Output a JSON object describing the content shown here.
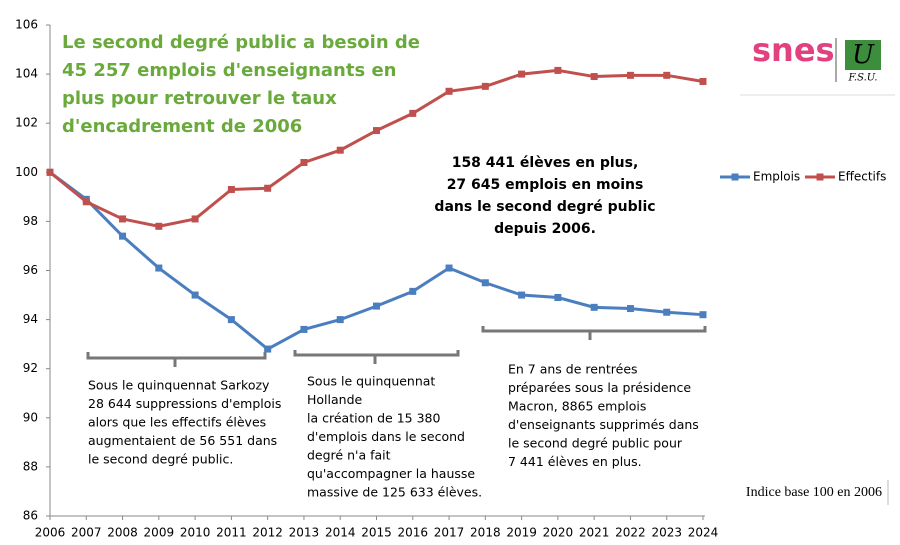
{
  "chart_data": {
    "type": "line",
    "title_lines": [
      "Le second degré public a besoin de",
      "45 257 emplois d'enseignants en",
      "plus pour retrouver le taux",
      "d'encadrement de 2006"
    ],
    "categories": [
      "2006",
      "2007",
      "2008",
      "2009",
      "2010",
      "2011",
      "2012",
      "2013",
      "2014",
      "2015",
      "2016",
      "2017",
      "2018",
      "2019",
      "2020",
      "2021",
      "2022",
      "2023",
      "2024"
    ],
    "series": [
      {
        "name": "Emplois",
        "color": "#4a7ebf",
        "values": [
          100,
          98.9,
          97.4,
          96.1,
          95.0,
          94.0,
          92.8,
          93.6,
          94.0,
          94.55,
          95.15,
          96.1,
          95.5,
          95.0,
          94.9,
          94.5,
          94.45,
          94.3,
          94.2
        ]
      },
      {
        "name": "Effectifs",
        "color": "#c0504d",
        "values": [
          100,
          98.8,
          98.1,
          97.8,
          98.1,
          99.3,
          99.35,
          100.4,
          100.9,
          101.7,
          102.4,
          103.3,
          103.5,
          104.0,
          104.15,
          103.9,
          103.95,
          103.95,
          103.7
        ]
      }
    ],
    "ylim": [
      86,
      106
    ],
    "yticks": [
      86,
      88,
      90,
      92,
      94,
      96,
      98,
      100,
      102,
      104,
      106
    ],
    "legend": "right",
    "highlight_lines": [
      "158 441 élèves en plus,",
      "27 645 emplois en moins",
      "dans le second degré public",
      "depuis 2006."
    ],
    "annotations": [
      [
        "Sous le quinquennat Sarkozy",
        "28 644 suppressions d'emplois",
        "alors que les effectifs élèves",
        "augmentaient de 56 551 dans",
        "le second degré public."
      ],
      [
        "Sous le quinquennat",
        "Hollande",
        "la création de 15 380",
        "d'emplois dans le second",
        "degré n'a fait",
        "qu'accompagner la hausse",
        "massive de 125 633 élèves."
      ],
      [
        "En 7 ans de rentrées",
        "préparées sous la présidence",
        "Macron, 8865 emplois",
        "d'enseignants supprimés dans",
        "le second degré public pour",
        "7  441 élèves en plus."
      ]
    ],
    "note": "Indice base 100 en 2006",
    "logo": {
      "snes": "snes",
      "u": "U",
      "fsu": "F.S.U."
    }
  }
}
